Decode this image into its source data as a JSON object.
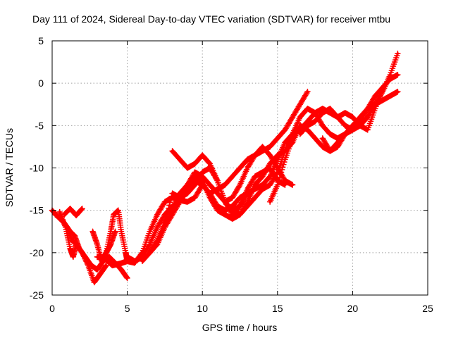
{
  "chart_data": {
    "type": "scatter",
    "title": "Day 111 of 2024, Sidereal Day-to-day VTEC variation (SDTVAR) for receiver mtbu",
    "xlabel": "GPS time / hours",
    "ylabel": "SDTVAR / TECUs",
    "xlim": [
      0,
      25
    ],
    "ylim": [
      -25,
      5
    ],
    "xticks": [
      "0",
      "5",
      "10",
      "15",
      "20",
      "25"
    ],
    "yticks": [
      "5",
      "0",
      "-5",
      "-10",
      "-15",
      "-20",
      "-25"
    ],
    "grid": true,
    "marker": "+",
    "color": "#ff0000",
    "series": [
      {
        "x": [
          0.0,
          0.4,
          0.8,
          1.2,
          1.5,
          1.8,
          2.2,
          2.6,
          3.0,
          3.4,
          3.8,
          4.2,
          4.6,
          5.0
        ],
        "y": [
          -15.0,
          -15.8,
          -16.5,
          -17.5,
          -18.0,
          -19.5,
          -20.5,
          -21.5,
          -22.0,
          -21.0,
          -20.5,
          -21.2,
          -22.0,
          -23.0
        ]
      },
      {
        "x": [
          0.2,
          0.6,
          1.0,
          1.3,
          1.6,
          2.0,
          2.4,
          2.8,
          3.2,
          3.6
        ],
        "y": [
          -15.5,
          -16.0,
          -17.0,
          -18.5,
          -19.0,
          -20.0,
          -21.5,
          -23.5,
          -22.5,
          -21.5
        ]
      },
      {
        "x": [
          0.5,
          0.9,
          1.2,
          1.4,
          1.6
        ],
        "y": [
          -15.2,
          -17.0,
          -19.5,
          -20.5,
          -19.0
        ]
      },
      {
        "x": [
          0.8,
          1.2,
          1.6,
          2.0
        ],
        "y": [
          -15.5,
          -14.8,
          -15.6,
          -14.8
        ]
      },
      {
        "x": [
          2.7,
          3.0,
          3.3,
          3.6,
          3.9,
          4.2
        ],
        "y": [
          -17.5,
          -19.0,
          -21.0,
          -20.0,
          -19.0,
          -17.5
        ]
      },
      {
        "x": [
          3.6,
          3.9,
          4.1,
          4.4,
          4.6,
          4.9,
          5.0
        ],
        "y": [
          -20.0,
          -17.5,
          -15.5,
          -15.0,
          -17.5,
          -20.0,
          -21.0
        ]
      },
      {
        "x": [
          3.0,
          3.5,
          4.0,
          4.5,
          5.0,
          5.5,
          6.0,
          6.5,
          7.0,
          7.5,
          8.0,
          8.5,
          9.0,
          9.5,
          10.0,
          10.5,
          11.0,
          11.5,
          12.0,
          12.5,
          13.0,
          13.5,
          14.0,
          14.5,
          15.0,
          15.5,
          16.0,
          16.5,
          17.0,
          17.5,
          18.0,
          18.5,
          19.0,
          19.5,
          20.0,
          20.5,
          21.0,
          21.5,
          22.0,
          22.5,
          23.0
        ],
        "y": [
          -20.5,
          -20.7,
          -21.5,
          -21.3,
          -21.0,
          -21.2,
          -20.0,
          -17.5,
          -15.5,
          -14.0,
          -13.5,
          -13.8,
          -14.0,
          -13.5,
          -12.0,
          -13.0,
          -14.5,
          -15.0,
          -14.5,
          -13.5,
          -13.0,
          -12.5,
          -12.0,
          -11.0,
          -9.0,
          -7.0,
          -6.0,
          -5.5,
          -4.5,
          -3.5,
          -3.0,
          -3.5,
          -4.0,
          -5.0,
          -5.5,
          -4.5,
          -3.0,
          -1.5,
          -0.5,
          0.5,
          1.0
        ]
      },
      {
        "x": [
          5.0,
          5.5,
          6.0,
          6.5,
          7.0,
          7.5,
          8.0,
          8.5,
          9.0,
          9.5,
          10.0,
          10.5,
          11.0,
          11.5,
          12.0,
          12.5,
          13.0,
          13.5,
          14.0,
          14.5,
          15.0,
          15.5,
          16.0,
          16.5,
          17.0,
          17.5,
          18.0,
          18.5,
          19.0,
          19.5,
          20.0,
          20.5,
          21.0,
          21.5,
          22.0,
          22.5,
          23.0
        ],
        "y": [
          -20.5,
          -21.0,
          -20.5,
          -19.0,
          -17.0,
          -15.5,
          -14.5,
          -14.0,
          -12.0,
          -10.5,
          -11.0,
          -12.0,
          -13.0,
          -14.0,
          -15.0,
          -15.5,
          -14.5,
          -13.5,
          -12.5,
          -12.0,
          -10.5,
          -8.0,
          -6.0,
          -4.0,
          -3.0,
          -3.5,
          -5.0,
          -6.0,
          -6.5,
          -6.0,
          -5.5,
          -5.0,
          -4.0,
          -2.5,
          -1.0,
          1.0,
          3.5
        ]
      },
      {
        "x": [
          6.0,
          6.5,
          7.0,
          7.5,
          8.0,
          8.5,
          9.0,
          9.5,
          10.0,
          10.5,
          11.0,
          11.5,
          12.0,
          12.5,
          13.0,
          13.5,
          14.0,
          14.5,
          15.0,
          15.5,
          16.0,
          16.5,
          17.0
        ],
        "y": [
          -21.0,
          -20.0,
          -18.5,
          -16.5,
          -15.0,
          -13.0,
          -12.0,
          -11.5,
          -12.0,
          -13.0,
          -12.5,
          -12.0,
          -11.0,
          -10.0,
          -9.0,
          -8.5,
          -8.0,
          -7.5,
          -6.5,
          -5.5,
          -4.0,
          -2.5,
          -1.0
        ]
      },
      {
        "x": [
          6.5,
          7.0,
          7.5,
          8.0,
          8.5,
          9.0,
          9.5,
          10.0,
          10.5,
          11.0,
          11.5,
          12.0,
          12.5,
          13.0,
          13.5,
          14.0,
          14.5,
          15.0,
          15.5,
          16.0,
          16.5
        ],
        "y": [
          -20.0,
          -19.0,
          -17.0,
          -15.5,
          -14.0,
          -12.5,
          -11.0,
          -11.5,
          -13.5,
          -15.0,
          -15.5,
          -16.0,
          -15.5,
          -14.0,
          -12.0,
          -11.0,
          -9.5,
          -8.5,
          -8.0,
          -7.0,
          -5.0
        ]
      },
      {
        "x": [
          7.5,
          8.0,
          8.5,
          9.0,
          9.5,
          10.0,
          10.5,
          11.0,
          11.5,
          12.0,
          12.5,
          13.0,
          13.5,
          14.0,
          14.5,
          15.0,
          15.5
        ],
        "y": [
          -16.5,
          -13.0,
          -13.5,
          -13.0,
          -12.0,
          -10.5,
          -10.0,
          -11.5,
          -14.0,
          -15.5,
          -14.5,
          -12.5,
          -11.0,
          -10.5,
          -10.0,
          -11.5,
          -12.0
        ]
      },
      {
        "x": [
          8.0,
          8.5,
          9.0,
          9.5,
          10.0,
          10.5,
          11.0,
          11.5,
          12.0,
          12.5,
          13.0
        ],
        "y": [
          -8.0,
          -9.0,
          -10.0,
          -9.5,
          -8.5,
          -9.5,
          -11.5,
          -14.0,
          -15.0,
          -14.5,
          -13.0
        ]
      },
      {
        "x": [
          11.5,
          12.0,
          12.5,
          13.0,
          13.5,
          14.0,
          14.5,
          15.0,
          15.5,
          16.0
        ],
        "y": [
          -14.0,
          -13.5,
          -12.0,
          -10.0,
          -8.5,
          -7.5,
          -8.5,
          -10.0,
          -11.5,
          -12.0
        ]
      },
      {
        "x": [
          14.5,
          15.0,
          15.5,
          16.0,
          16.5,
          17.0,
          17.5,
          18.0,
          18.5,
          19.0,
          19.5,
          20.0
        ],
        "y": [
          -14.0,
          -12.0,
          -9.0,
          -6.5,
          -5.0,
          -5.5,
          -6.5,
          -7.5,
          -8.0,
          -7.0,
          -6.0,
          -5.0
        ]
      },
      {
        "x": [
          16.5,
          17.0,
          17.5,
          18.0,
          18.5,
          19.0,
          19.5,
          20.0,
          20.5,
          21.0,
          21.5,
          22.0
        ],
        "y": [
          -6.0,
          -5.0,
          -4.5,
          -3.5,
          -3.0,
          -4.0,
          -3.5,
          -4.0,
          -5.0,
          -5.5,
          -3.0,
          -0.5
        ]
      },
      {
        "x": [
          18.0,
          18.5,
          19.0,
          19.5,
          20.0,
          20.5,
          21.0,
          21.5,
          22.0,
          22.5,
          23.0
        ],
        "y": [
          -6.5,
          -8.0,
          -7.5,
          -6.0,
          -5.0,
          -4.0,
          -3.0,
          -2.5,
          -2.0,
          -1.5,
          -1.0
        ]
      }
    ]
  }
}
